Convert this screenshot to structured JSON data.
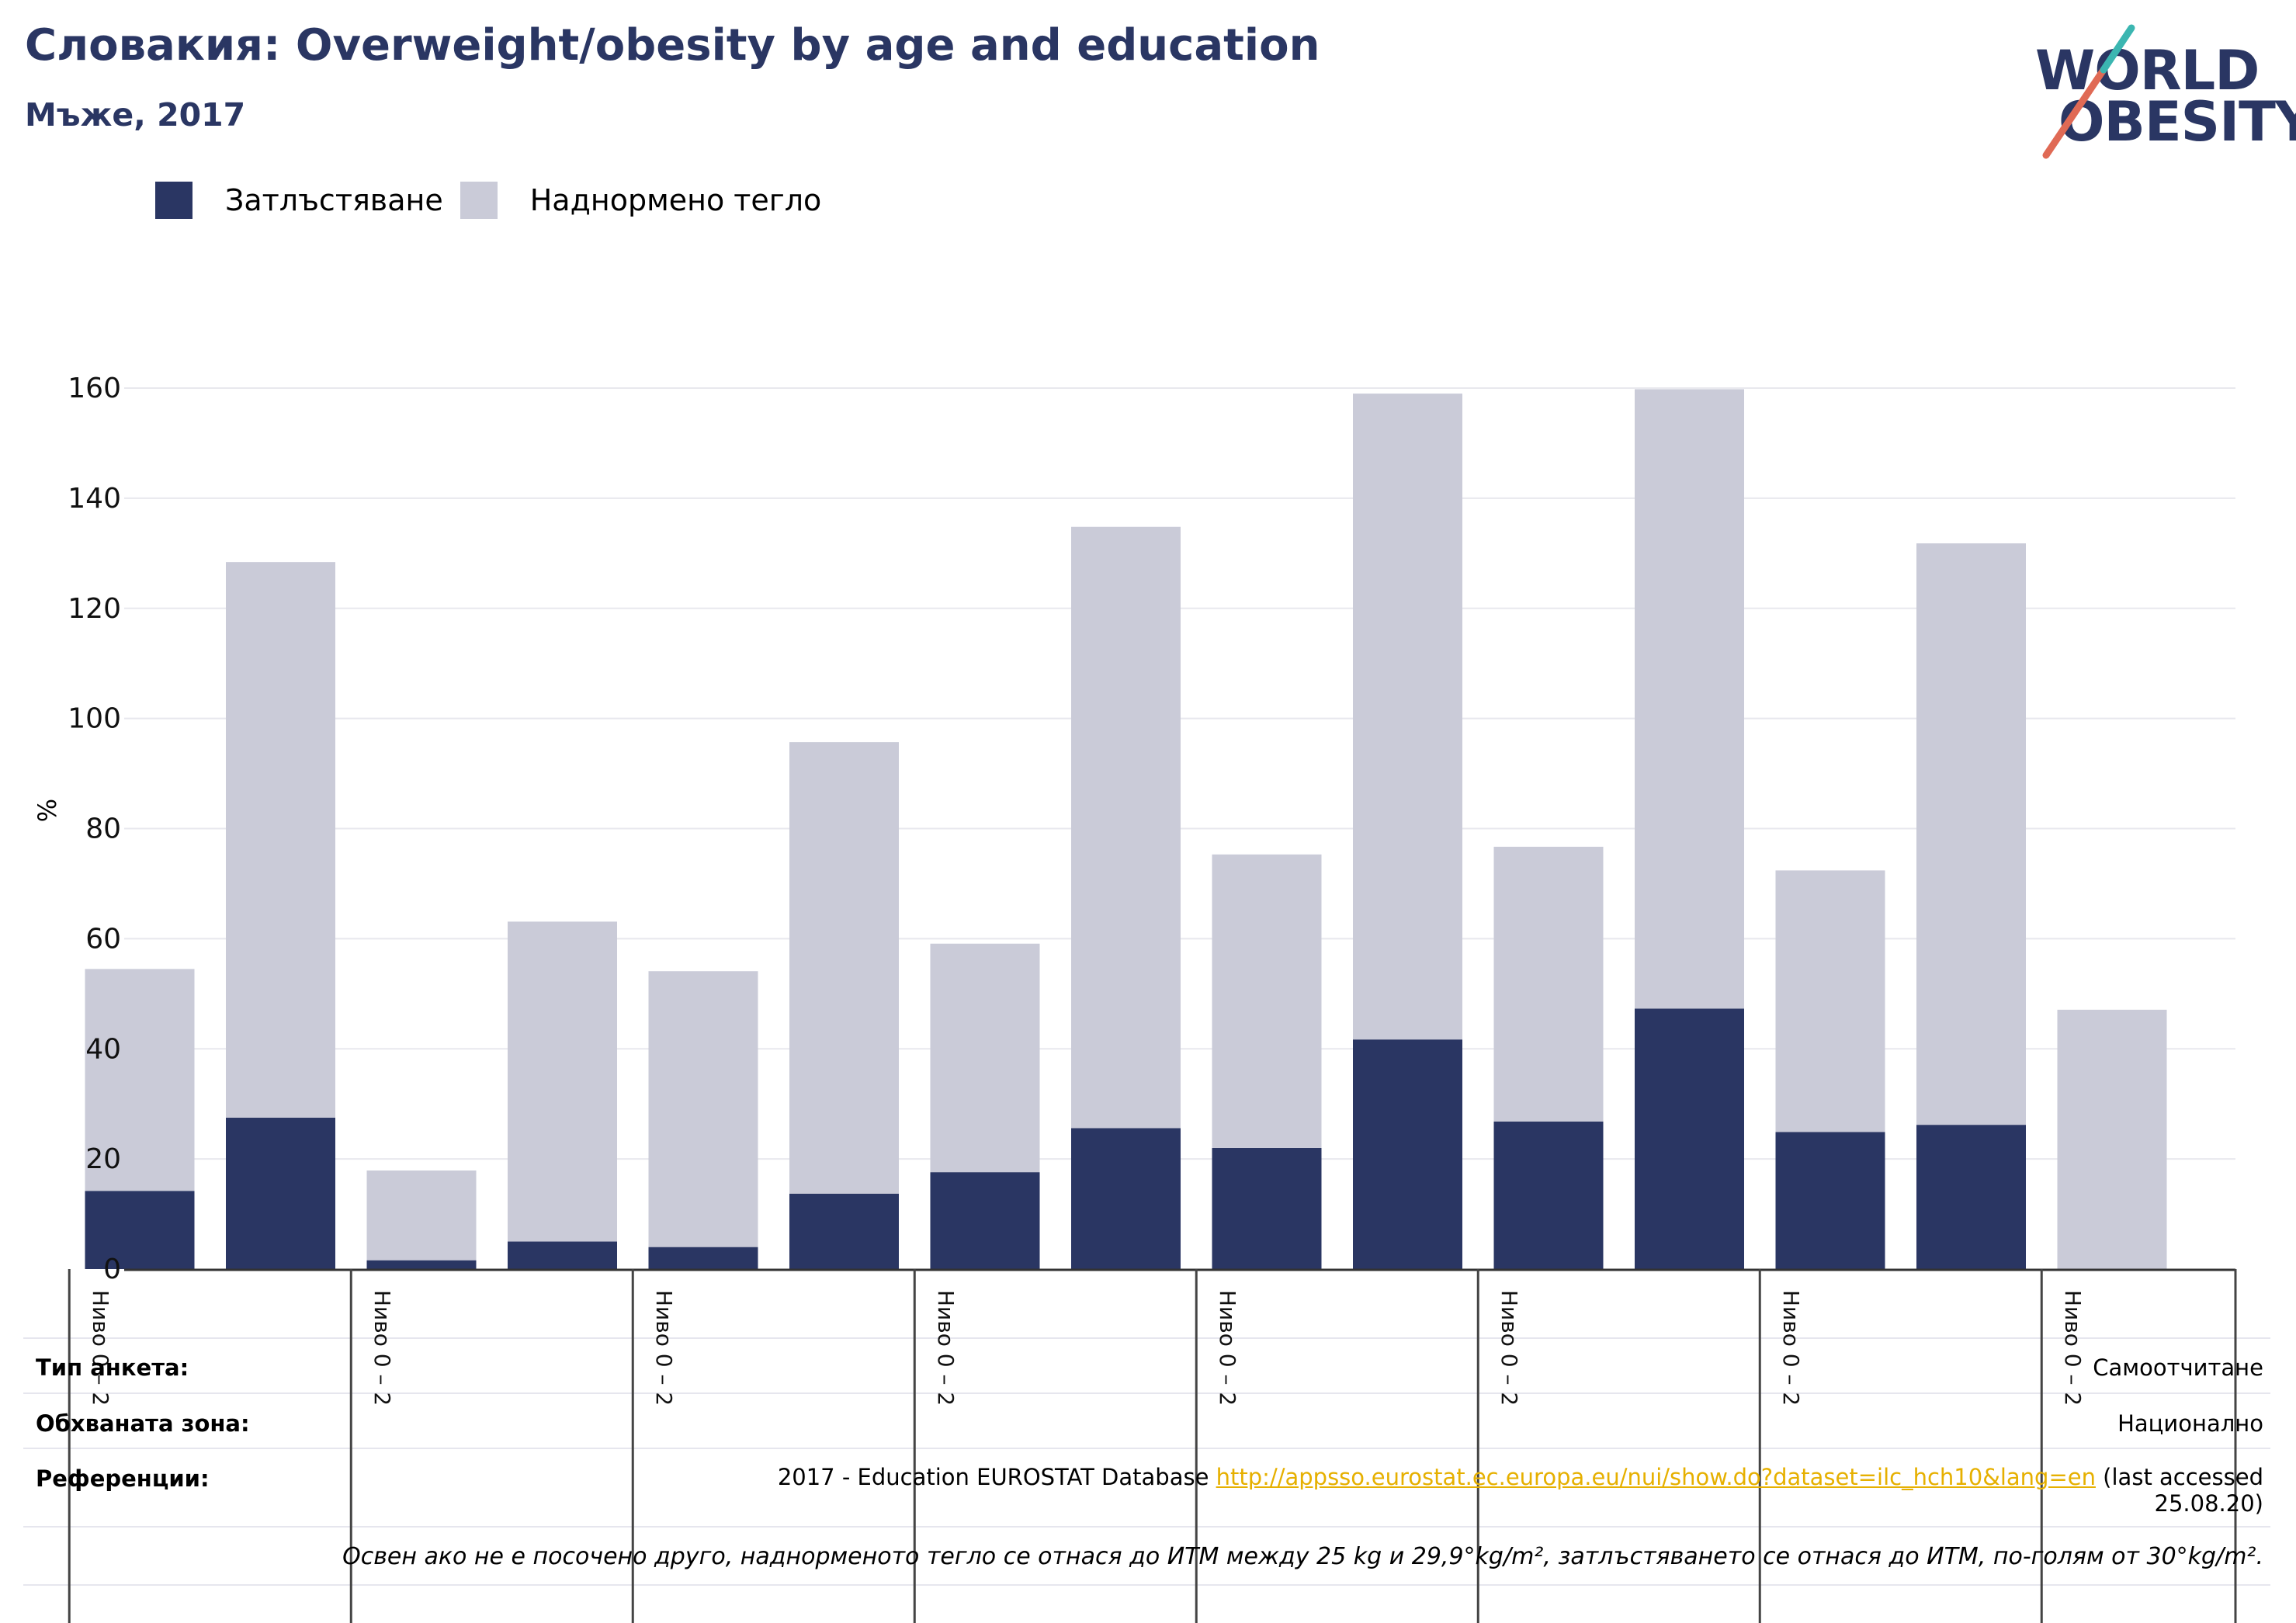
{
  "header": {
    "title": "Словакия: Overweight/obesity by age and education",
    "subtitle": "Мъже, 2017"
  },
  "logo": {
    "line1": "WORLD",
    "line2": "OBESITY",
    "colors": [
      "#2a3663",
      "#e06a55",
      "#3bb6b1"
    ]
  },
  "legend": {
    "items": [
      {
        "label": "Затлъстяване",
        "color": "#2a3663"
      },
      {
        "label": "Наднормено тегло",
        "color": "#cacbd8"
      }
    ]
  },
  "chart_data": {
    "type": "bar",
    "stacked": true,
    "ylabel": "%",
    "ylim": [
      0,
      160
    ],
    "yticks": [
      0,
      20,
      40,
      60,
      80,
      100,
      120,
      140,
      160
    ],
    "grid": true,
    "legend_position": "top-left",
    "categories": [
      "Ниво 0 – 2",
      "",
      "Ниво 0 – 2",
      "",
      "Ниво 0 – 2",
      "",
      "Ниво 0 – 2",
      "",
      "Ниво 0 – 2",
      "",
      "Ниво 0 – 2",
      "",
      "Ниво 0 – 2",
      "",
      "Ниво 0 – 2"
    ],
    "series": [
      {
        "name": "Затлъстяване",
        "color": "#2a3663",
        "values": [
          14.2,
          27.5,
          1.6,
          5.0,
          4.0,
          13.7,
          17.6,
          25.6,
          22.0,
          41.7,
          26.8,
          47.3,
          24.9,
          26.2,
          0
        ]
      },
      {
        "name": "Наднормено тегло",
        "color": "#cacbd8",
        "values": [
          40.3,
          100.9,
          16.3,
          58.1,
          50.1,
          82.0,
          41.5,
          109.2,
          53.3,
          117.3,
          49.9,
          112.5,
          47.5,
          105.6,
          47.1
        ]
      }
    ]
  },
  "info": {
    "survey_type_label": "Тип анкета:",
    "survey_type_value": "Самоотчитане",
    "coverage_label": "Обхваната зона:",
    "coverage_value": "Национално",
    "references_label": "Референции:",
    "references_prefix": "2017 - Education EUROSTAT Database ",
    "references_link": "http://appsso.eurostat.ec.europa.eu/nui/show.do?dataset=ilc_hch10&lang=en",
    "references_suffix": " (last accessed 25.08.20)",
    "footnote": "Освен ако не е посочено друго, наднорменото тегло се отнася до ИТМ между 25 kg и 29,9°kg/m², затлъстяването се отнася до ИТМ, по-голям от 30°kg/m²."
  }
}
